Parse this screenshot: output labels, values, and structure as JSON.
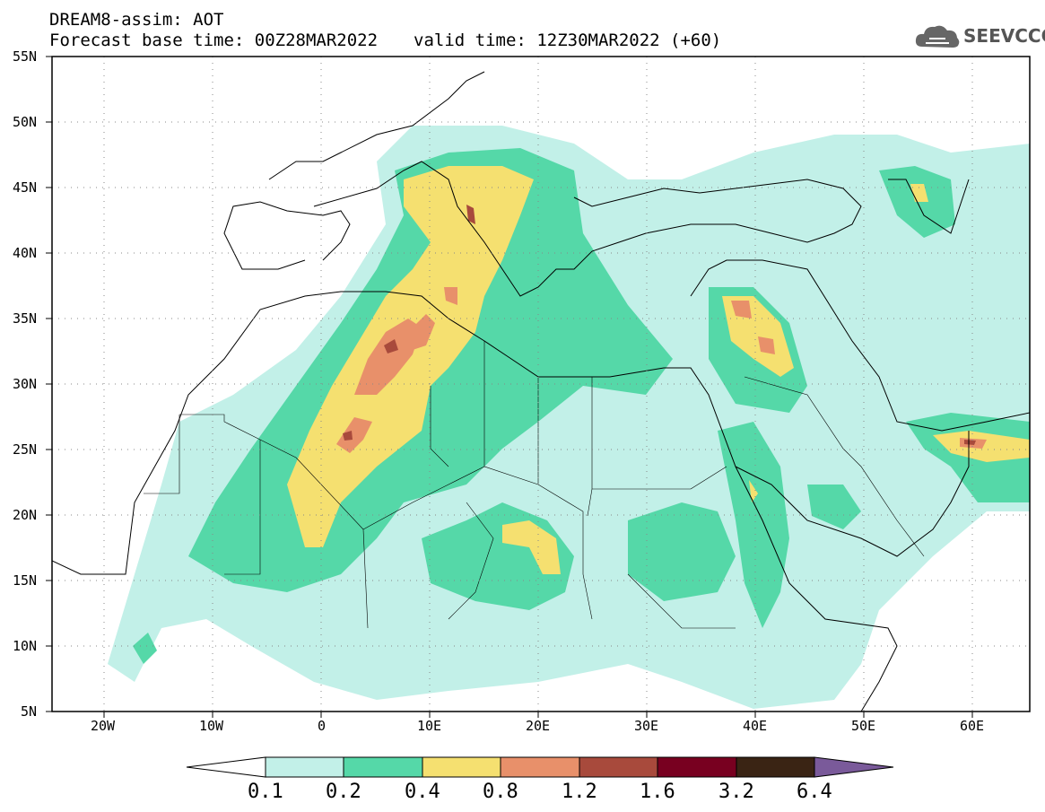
{
  "header": {
    "line1": "DREAM8-assim: AOT",
    "base_time": "Forecast base time: 00Z28MAR2022",
    "valid_time": "valid time: 12Z30MAR2022 (+60)"
  },
  "logo": {
    "text": "SEEVCCC",
    "icon": "cloud-icon"
  },
  "map": {
    "lon_range": [
      -25,
      65
    ],
    "lat_range": [
      5,
      55
    ],
    "lat_labels": [
      "55N",
      "50N",
      "45N",
      "40N",
      "35N",
      "30N",
      "25N",
      "20N",
      "15N",
      "10N",
      "5N"
    ],
    "lon_labels": [
      "20W",
      "10W",
      "0",
      "10E",
      "20E",
      "30E",
      "40E",
      "50E",
      "60E"
    ],
    "grid": "dotted"
  },
  "colorbar": {
    "labels": [
      "0.1",
      "0.2",
      "0.4",
      "0.8",
      "1.2",
      "1.6",
      "3.2",
      "6.4"
    ],
    "colors": [
      "#ffffff",
      "#c2f0e8",
      "#55d8a8",
      "#f5e070",
      "#e8906a",
      "#a84a3c",
      "#780020",
      "#3a2414",
      "#7a5a9a"
    ]
  }
}
